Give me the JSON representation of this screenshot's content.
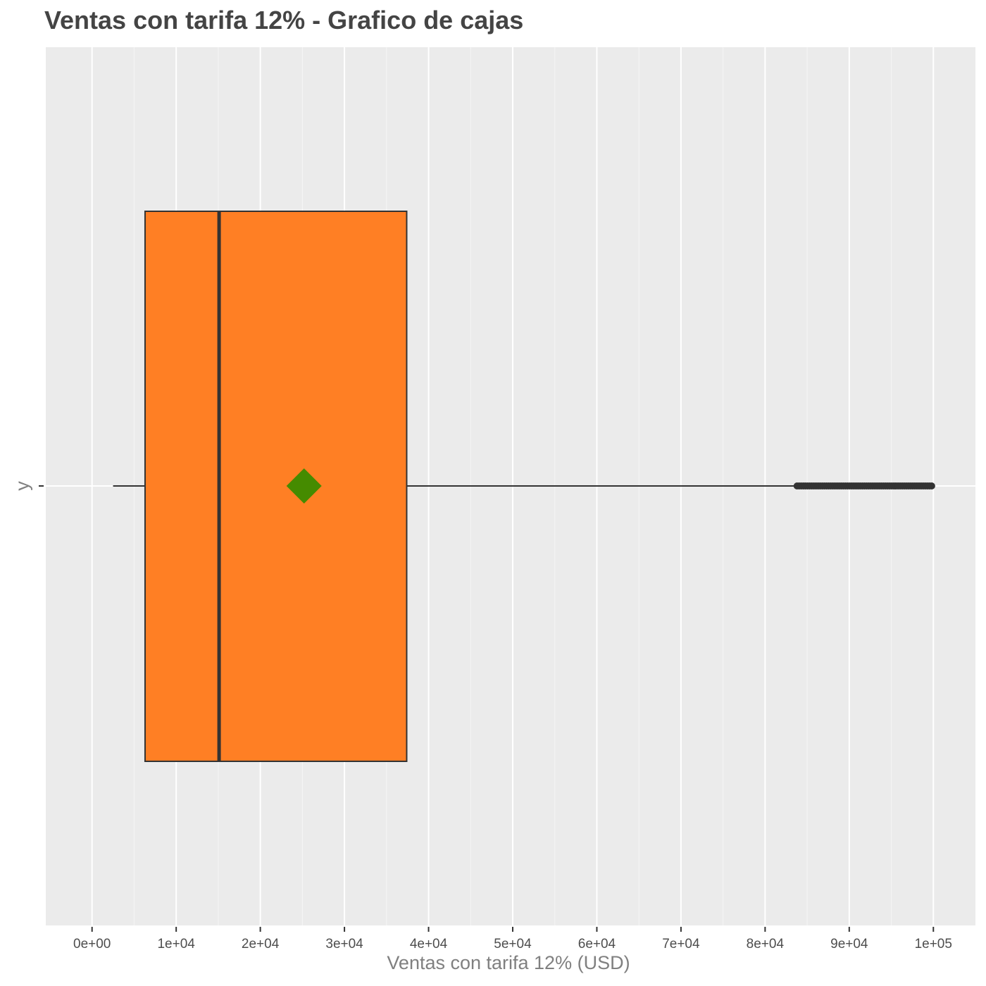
{
  "chart_data": {
    "type": "boxplot",
    "orientation": "horizontal",
    "title": "Ventas con tarifa 12% - Grafico de cajas",
    "xlabel": "Ventas con tarifa 12% (USD)",
    "ylabel": "y",
    "category": "",
    "xlim": [
      -5500,
      105000
    ],
    "x_ticks": [
      0,
      10000,
      20000,
      30000,
      40000,
      50000,
      60000,
      70000,
      80000,
      90000,
      100000
    ],
    "x_tick_labels": [
      "0e+00",
      "1e+04",
      "2e+04",
      "3e+04",
      "4e+04",
      "5e+04",
      "6e+04",
      "7e+04",
      "8e+04",
      "9e+04",
      "1e+05"
    ],
    "stats": {
      "whisker_low": 2500,
      "q1": 6300,
      "median": 15100,
      "q3": 37400,
      "whisker_high": 83800,
      "mean": 25200
    },
    "outliers_range": [
      83800,
      100000
    ],
    "grid": true,
    "legend": "none",
    "colors": {
      "panel": "#EBEBEB",
      "grid": "#FFFFFF",
      "box_fill": "#FF7F24",
      "box_line": "#333333",
      "mean_marker": "#458B00"
    }
  }
}
